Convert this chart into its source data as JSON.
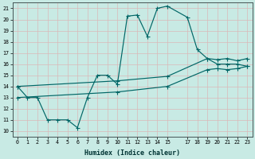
{
  "xlabel": "Humidex (Indice chaleur)",
  "bg_color": "#c8eae4",
  "grid_color": "#dab8b8",
  "line_color": "#006666",
  "xlim": [
    -0.5,
    23.5
  ],
  "ylim": [
    9.5,
    21.5
  ],
  "yticks": [
    10,
    11,
    12,
    13,
    14,
    15,
    16,
    17,
    18,
    19,
    20,
    21
  ],
  "xticks": [
    0,
    1,
    2,
    3,
    4,
    5,
    6,
    7,
    8,
    9,
    10,
    11,
    12,
    13,
    14,
    15,
    17,
    18,
    19,
    20,
    21,
    22,
    23
  ],
  "xtick_labels": [
    "0",
    "1",
    "2",
    "3",
    "4",
    "5",
    "6",
    "7",
    "8",
    "9",
    "10",
    "11",
    "12",
    "13",
    "14",
    "15",
    "17",
    "18",
    "19",
    "20",
    "21",
    "22",
    "23"
  ],
  "line1_x": [
    0,
    1,
    2,
    3,
    4,
    5,
    6,
    7,
    8,
    9,
    10,
    11,
    12,
    13,
    14,
    15,
    17,
    18,
    19,
    20,
    21,
    22,
    23
  ],
  "line1_y": [
    14,
    13,
    13,
    11,
    11,
    11,
    10.3,
    13,
    15,
    15,
    14.2,
    20.3,
    20.4,
    18.5,
    21,
    21.2,
    20.2,
    17.3,
    16.5,
    16,
    16,
    16,
    15.8
  ],
  "line2_x": [
    0,
    10,
    15,
    19,
    20,
    21,
    22,
    23
  ],
  "line2_y": [
    14.0,
    14.5,
    14.9,
    16.5,
    16.4,
    16.5,
    16.3,
    16.5
  ],
  "line3_x": [
    0,
    10,
    15,
    19,
    20,
    21,
    22,
    23
  ],
  "line3_y": [
    13.0,
    13.5,
    14.0,
    15.5,
    15.6,
    15.5,
    15.6,
    15.8
  ]
}
